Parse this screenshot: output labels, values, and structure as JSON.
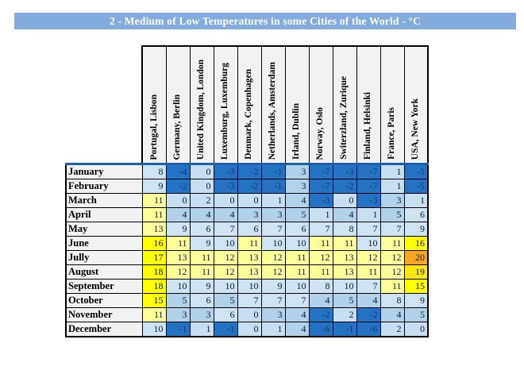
{
  "title": "2 - Medium of Low Temperatures in some Cities of the World - °C",
  "colors": {
    "title_bar_bg": "#84abdd",
    "title_text": "#ffffff",
    "header_cell_bg": "#f2f2f2",
    "header_underline_blue": "#1b5ea9",
    "grid_border": "#000000"
  },
  "chart_data": {
    "type": "heatmap",
    "title": "2 - Medium of Low Temperatures in some Cities of the World - °C",
    "unit": "°C",
    "legend_position": "none",
    "grid": true,
    "columns": [
      "Portugal, Lisbon",
      "Germany, Berlin",
      "United Kingdom, London",
      "Luxemburg, Luxemburg",
      "Denmark, Copenhagen",
      "Netherlands, Amsterdam",
      "Irland, Dublin",
      "Norway, Oslo",
      "Switerzland, Zurique",
      "Finland, Helsinki",
      "France, Paris",
      "USA, New York"
    ],
    "rows": [
      "January",
      "February",
      "March",
      "April",
      "May",
      "June",
      "Jully",
      "August",
      "September",
      "October",
      "November",
      "December"
    ],
    "values": [
      [
        8,
        -4,
        0,
        -3,
        -2,
        -1,
        3,
        -7,
        -3,
        -7,
        1,
        -5
      ],
      [
        9,
        -2,
        0,
        -3,
        -2,
        -1,
        3,
        -7,
        -2,
        -7,
        1,
        -5
      ],
      [
        11,
        0,
        2,
        0,
        0,
        1,
        4,
        -3,
        0,
        -3,
        3,
        1
      ],
      [
        11,
        4,
        4,
        4,
        3,
        3,
        5,
        1,
        4,
        1,
        5,
        6
      ],
      [
        13,
        9,
        6,
        7,
        6,
        7,
        6,
        7,
        8,
        7,
        7,
        9
      ],
      [
        16,
        11,
        9,
        10,
        11,
        10,
        10,
        11,
        11,
        10,
        11,
        16
      ],
      [
        17,
        13,
        11,
        12,
        13,
        12,
        11,
        12,
        13,
        12,
        12,
        20
      ],
      [
        18,
        12,
        11,
        12,
        13,
        12,
        11,
        11,
        13,
        11,
        12,
        19
      ],
      [
        18,
        10,
        9,
        10,
        10,
        9,
        10,
        8,
        10,
        7,
        11,
        15
      ],
      [
        15,
        5,
        6,
        5,
        7,
        7,
        7,
        4,
        5,
        4,
        8,
        9
      ],
      [
        11,
        3,
        3,
        6,
        0,
        3,
        4,
        -2,
        2,
        -2,
        4,
        5
      ],
      [
        10,
        -1,
        1,
        -1,
        0,
        1,
        4,
        -6,
        -1,
        -6,
        2,
        0
      ]
    ],
    "value_range": [
      -7,
      20
    ],
    "color_scale": [
      {
        "max": -1,
        "bg": "#2472c4",
        "text": "#16396b"
      },
      {
        "max": 2,
        "bg": "#c8dff1",
        "text": "#0b1c33"
      },
      {
        "max": 5,
        "bg": "#b2d2ea",
        "text": "#0b1c33"
      },
      {
        "max": 10,
        "bg": "#cee4f3",
        "text": "#0b1c33"
      },
      {
        "max": 14,
        "bg": "#ffff99",
        "text": "#0b1c33"
      },
      {
        "max": 18,
        "bg": "#ffff00",
        "text": "#0b1c33"
      },
      {
        "max": 19,
        "bg": "#ffe713",
        "text": "#0b1c33"
      },
      {
        "max": 999,
        "bg": "#f9a425",
        "text": "#0b1c33"
      }
    ]
  }
}
